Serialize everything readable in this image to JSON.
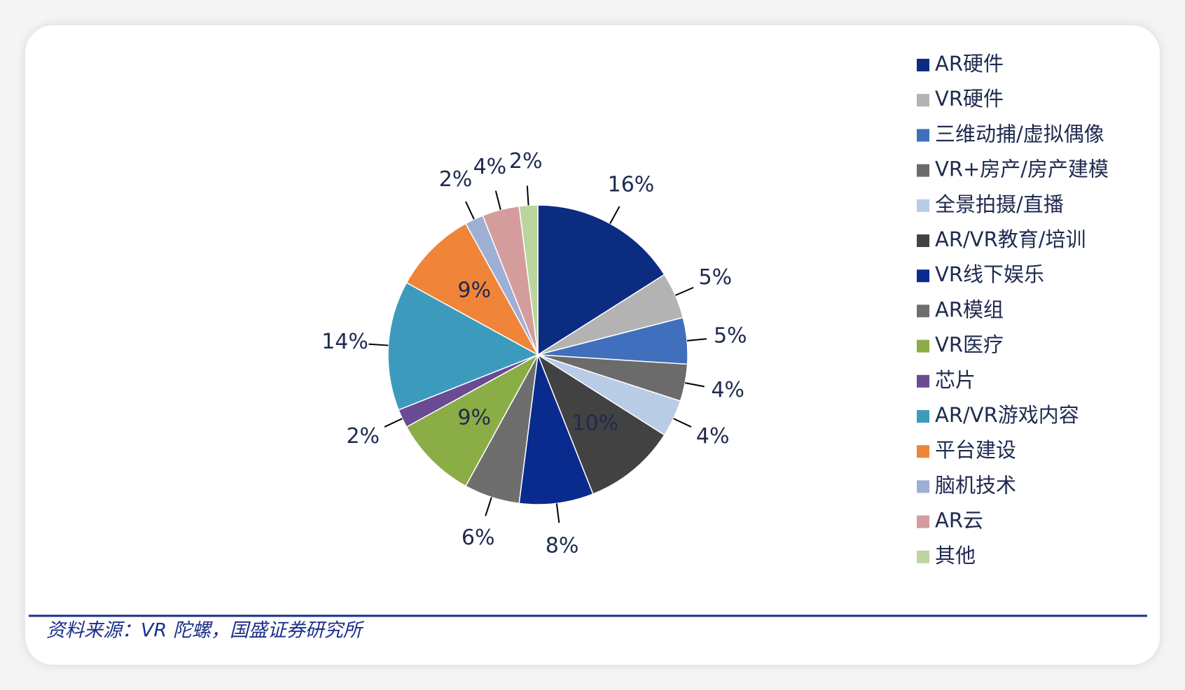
{
  "chart_data": {
    "type": "pie",
    "categories": [
      "AR硬件",
      "VR硬件",
      "三维动捕/虚拟偶像",
      "VR+房产/房产建模",
      "全景拍摄/直播",
      "AR/VR教育/培训",
      "VR线下娱乐",
      "AR模组",
      "VR医疗",
      "芯片",
      "AR/VR游戏内容",
      "平台建设",
      "脑机技术",
      "AR云",
      "其他"
    ],
    "values": [
      16,
      5,
      5,
      4,
      4,
      10,
      8,
      6,
      9,
      2,
      14,
      9,
      2,
      4,
      2
    ],
    "value_labels": [
      "16%",
      "5%",
      "5%",
      "4%",
      "4%",
      "10%",
      "8%",
      "6%",
      "9%",
      "2%",
      "14%",
      "9%",
      "2%",
      "4%",
      "2%"
    ],
    "colors": [
      "#0b2c80",
      "#b3b3b3",
      "#4070bd",
      "#6b6b6b",
      "#b8cce6",
      "#424242",
      "#0a2b8e",
      "#6e6e6e",
      "#8aad46",
      "#6a4a93",
      "#3c9bbd",
      "#f08539",
      "#9eafd5",
      "#d49c9c",
      "#bcd59d"
    ],
    "source": "资料来源：VR 陀螺，国盛证券研究所"
  }
}
